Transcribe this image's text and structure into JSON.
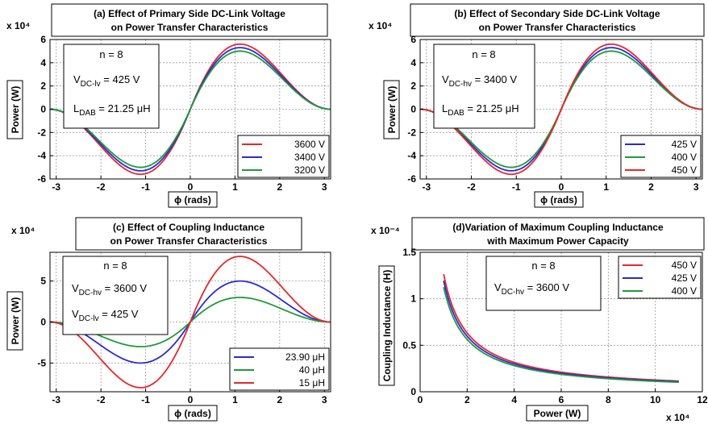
{
  "chart_data": [
    {
      "type": "line",
      "title": "(a) Effect of Primary Side DC-Link Voltage\non Power Transfer Characteristics",
      "xlabel": "ϕ (rads)",
      "ylabel": "Power (W)",
      "y_multiplier": "x 10⁴",
      "xlim": [
        -3.14,
        3.14
      ],
      "ylim": [
        -6,
        6
      ],
      "xticks": [
        -3,
        -2,
        -1,
        0,
        1,
        2,
        3
      ],
      "yticks": [
        -6,
        -4,
        -2,
        0,
        2,
        4,
        6
      ],
      "grid": true,
      "legend": "bottom-right",
      "annotations": [
        "n = 8",
        "V_DC-lv = 425 V",
        "L_DAB = 21.25 μH"
      ],
      "series": [
        {
          "name": "3600 V",
          "color": "#e8262a",
          "function": "sin-power",
          "amplitude": 5.6
        },
        {
          "name": "3400 V",
          "color": "#2a2ad6",
          "function": "sin-power",
          "amplitude": 5.3
        },
        {
          "name": "3200 V",
          "color": "#1f9a3a",
          "function": "sin-power",
          "amplitude": 5.0
        }
      ]
    },
    {
      "type": "line",
      "title": "(b) Effect of Secondary Side DC-Link Voltage\non Power Transfer Characteristics",
      "xlabel": "ϕ (rads)",
      "ylabel": "Power (W)",
      "y_multiplier": "x 10⁴",
      "xlim": [
        -3.14,
        3.14
      ],
      "ylim": [
        -6,
        6
      ],
      "xticks": [
        -3,
        -2,
        -1,
        0,
        1,
        2,
        3
      ],
      "yticks": [
        -6,
        -4,
        -2,
        0,
        2,
        4,
        6
      ],
      "grid": true,
      "legend": "bottom-right",
      "annotations": [
        "n = 8",
        "V_DC-hv = 3400 V",
        "L_DAB = 21.25 μH"
      ],
      "series": [
        {
          "name": "425 V",
          "color": "#2a2ad6",
          "function": "sin-power",
          "amplitude": 5.3
        },
        {
          "name": "400 V",
          "color": "#1f9a3a",
          "function": "sin-power",
          "amplitude": 5.0
        },
        {
          "name": "450 V",
          "color": "#e8262a",
          "function": "sin-power",
          "amplitude": 5.6
        }
      ]
    },
    {
      "type": "line",
      "title": "(c) Effect of Coupling Inductance\non Power Transfer Characteristics",
      "xlabel": "ϕ (rads)",
      "ylabel": "Power (W)",
      "y_multiplier": "x 10⁴",
      "xlim": [
        -3.14,
        3.14
      ],
      "ylim": [
        -8.5,
        8.5
      ],
      "xticks": [
        -3,
        -2,
        -1,
        0,
        1,
        2,
        3
      ],
      "yticks": [
        -5,
        0,
        5
      ],
      "grid": true,
      "legend": "bottom-right",
      "annotations": [
        "n = 8",
        "V_DC-hv = 3600 V",
        "V_DC-lv = 425 V"
      ],
      "series": [
        {
          "name": "23.90 μH",
          "color": "#2a2ad6",
          "function": "sin-power",
          "amplitude": 5.0
        },
        {
          "name": "40 μH",
          "color": "#1f9a3a",
          "function": "sin-power",
          "amplitude": 3.0
        },
        {
          "name": "15 μH",
          "color": "#e8262a",
          "function": "sin-power",
          "amplitude": 8.0
        }
      ]
    },
    {
      "type": "line",
      "title": "(d)Variation of Maximum Coupling Inductance\nwith Maximum Power Capacity",
      "xlabel": "Power (W)",
      "ylabel": "Coupling Inductance (H)",
      "x_multiplier": "x 10⁴",
      "y_multiplier": "x 10⁻⁴",
      "xlim": [
        0,
        12
      ],
      "ylim": [
        0,
        1.5
      ],
      "xticks": [
        0,
        2,
        4,
        6,
        8,
        10,
        12
      ],
      "yticks": [
        0,
        0.5,
        1,
        1.5
      ],
      "grid": true,
      "legend": "top-right",
      "annotations": [
        "n = 8",
        "V_DC-hv = 3600 V"
      ],
      "series": [
        {
          "name": "450 V",
          "color": "#e8262a",
          "function": "inverse",
          "k": 1.265,
          "x": [
            1.0,
            1.2,
            1.5,
            2,
            2.5,
            3,
            4,
            5,
            6,
            7,
            8,
            9,
            10,
            11
          ]
        },
        {
          "name": "425 V",
          "color": "#2a2ad6",
          "function": "inverse",
          "k": 1.195,
          "x": [
            1.0,
            1.2,
            1.5,
            2,
            2.5,
            3,
            4,
            5,
            6,
            7,
            8,
            9,
            10,
            11
          ]
        },
        {
          "name": "400 V",
          "color": "#1f9a3a",
          "function": "inverse",
          "k": 1.125,
          "x": [
            1.0,
            1.2,
            1.5,
            2,
            2.5,
            3,
            4,
            5,
            6,
            7,
            8,
            9,
            10,
            11
          ]
        }
      ]
    }
  ]
}
